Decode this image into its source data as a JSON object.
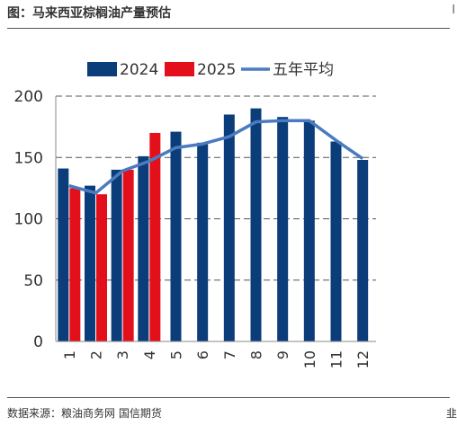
{
  "page": {
    "title": "图：马来西亚棕榈油产量预估",
    "source": "数据来源：粮油商务网  国信期货",
    "edge_mark_top": "l",
    "edge_mark_bottom": "韭"
  },
  "colors": {
    "series_2024": "#0b3d7a",
    "series_2025": "#e3101c",
    "five_year_avg": "#4a7bc0",
    "gridline": "#555555",
    "axis": "#888888"
  },
  "chart_data": {
    "type": "bar",
    "title": "",
    "xlabel": "",
    "ylabel": "",
    "categories": [
      "1",
      "2",
      "3",
      "4",
      "5",
      "6",
      "7",
      "8",
      "9",
      "10",
      "11",
      "12"
    ],
    "ylim": [
      0,
      200
    ],
    "yticks": [
      0,
      50,
      100,
      150,
      200
    ],
    "grid": true,
    "legend_position": "top",
    "series": [
      {
        "name": "2024",
        "kind": "bar",
        "color": "#0b3d7a",
        "values": [
          141,
          127,
          140,
          151,
          171,
          162,
          185,
          190,
          183,
          180,
          163,
          148
        ]
      },
      {
        "name": "2025",
        "kind": "bar",
        "color": "#e3101c",
        "values": [
          125,
          120,
          140,
          170,
          null,
          null,
          null,
          null,
          null,
          null,
          null,
          null
        ]
      },
      {
        "name": "五年平均",
        "kind": "line",
        "color": "#4a7bc0",
        "values": [
          127,
          121,
          139,
          147,
          158,
          161,
          167,
          179,
          180,
          180,
          164,
          149
        ]
      }
    ]
  }
}
